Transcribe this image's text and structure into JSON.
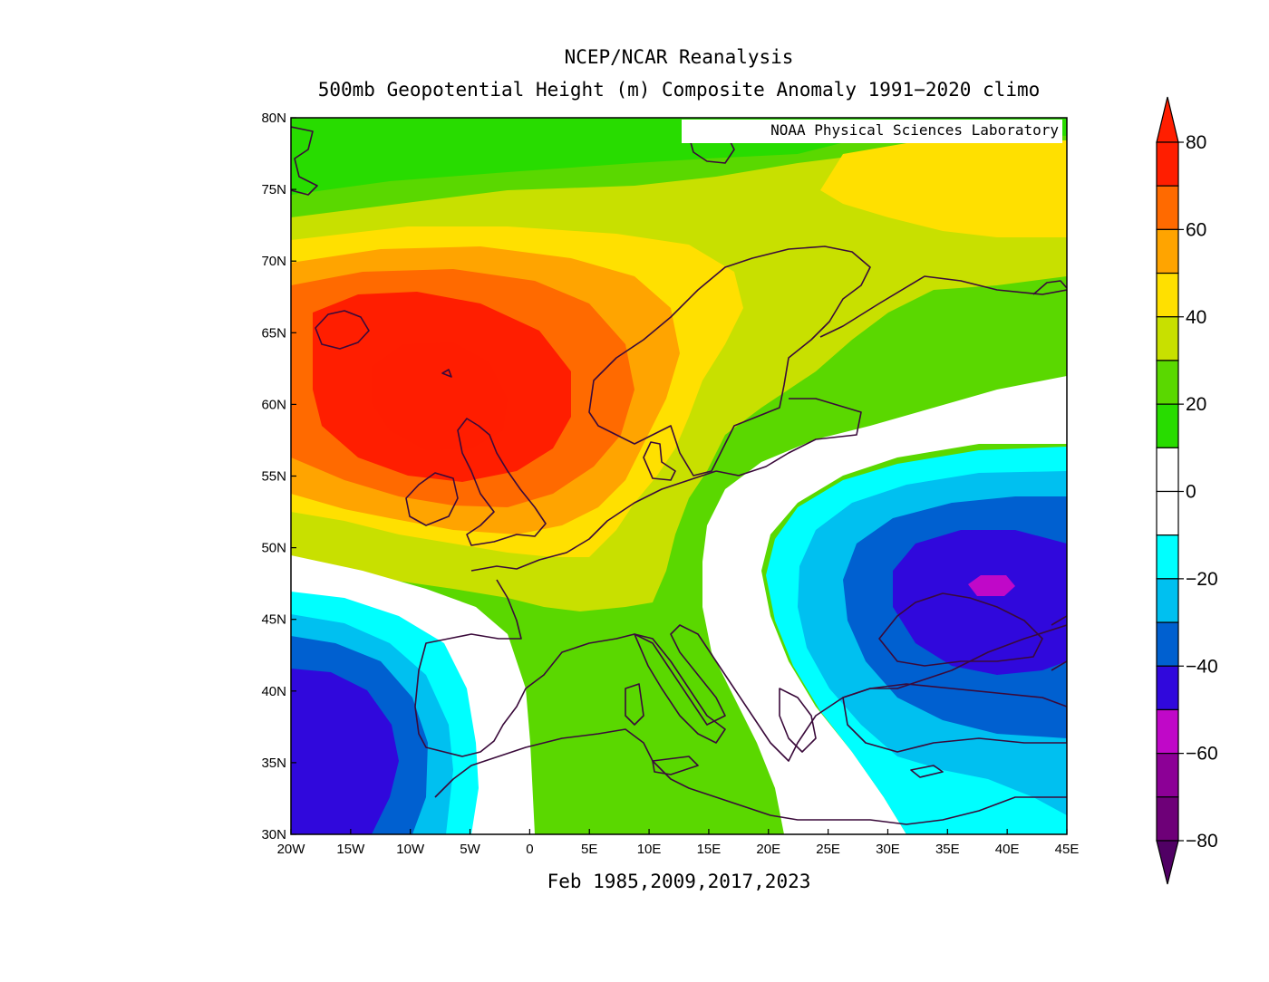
{
  "title": "NCEP/NCAR Reanalysis",
  "subtitle": "500mb Geopotential Height (m) Composite Anomaly 1991−2020 climo",
  "credit": "NOAA Physical Sciences Laboratory",
  "period_label": "Feb 1985,2009,2017,2023",
  "axes": {
    "lon_range": [
      -20,
      45
    ],
    "lat_range": [
      30,
      80
    ],
    "lon_ticks": [
      "20W",
      "15W",
      "10W",
      "5W",
      "0",
      "5E",
      "10E",
      "15E",
      "20E",
      "25E",
      "30E",
      "35E",
      "40E",
      "45E"
    ],
    "lat_ticks": [
      "30N",
      "35N",
      "40N",
      "45N",
      "50N",
      "55N",
      "60N",
      "65N",
      "70N",
      "75N",
      "80N"
    ]
  },
  "colorbar": {
    "labels": [
      "80",
      "60",
      "40",
      "20",
      "0",
      "−20",
      "−40",
      "−60",
      "−80"
    ],
    "colors_top_to_bottom": [
      "#ff1e00",
      "#ff6a00",
      "#ffa400",
      "#ffe000",
      "#c8e000",
      "#5ad800",
      "#28dc00",
      "#ffffff",
      "#ffffff",
      "#00ffff",
      "#00c0f0",
      "#0060d0",
      "#3008dc",
      "#c008c8",
      "#8c0096",
      "#6e0078"
    ],
    "max_arrow_color": "#ff1e00",
    "min_arrow_color": "#500064"
  },
  "map_colors": {
    "anom_70_80": "#ff1e00",
    "anom_60_70": "#ff6a00",
    "anom_50_60": "#ffa400",
    "anom_40_50": "#ffe000",
    "anom_30_40": "#c8e000",
    "anom_20_30": "#5ad800",
    "anom_10_20": "#28dc00",
    "anom_0_10": "#ffffff",
    "anom_m10_m20": "#00ffff",
    "anom_m20_m30": "#00c0f0",
    "anom_m30_m40": "#0060d0",
    "anom_m40_m50": "#3008dc",
    "anom_m50_m60": "#c008c8",
    "coastline": "#3a0a3a"
  }
}
